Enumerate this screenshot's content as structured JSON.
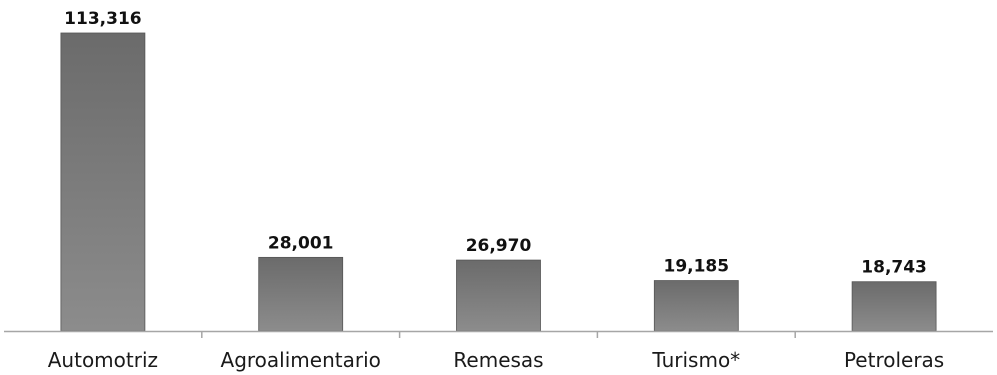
{
  "chart_data": {
    "type": "bar",
    "title": "",
    "xlabel": "",
    "ylabel": "",
    "categories": [
      "Automotriz",
      "Agroalimentario",
      "Remesas",
      "Turismo*",
      "Petroleras"
    ],
    "values": [
      113316,
      28001,
      26970,
      19185,
      18743
    ],
    "value_labels": [
      "113,316",
      "28,001",
      "26,970",
      "19,185",
      "18,743"
    ],
    "ylim": [
      0,
      113316
    ],
    "grid": false,
    "legend": "none",
    "colors": {
      "bar_top": "#6b6b6b",
      "bar_bottom": "#8c8c8c",
      "bar_edge": "#555555",
      "axis": "#a6a6a6"
    }
  }
}
